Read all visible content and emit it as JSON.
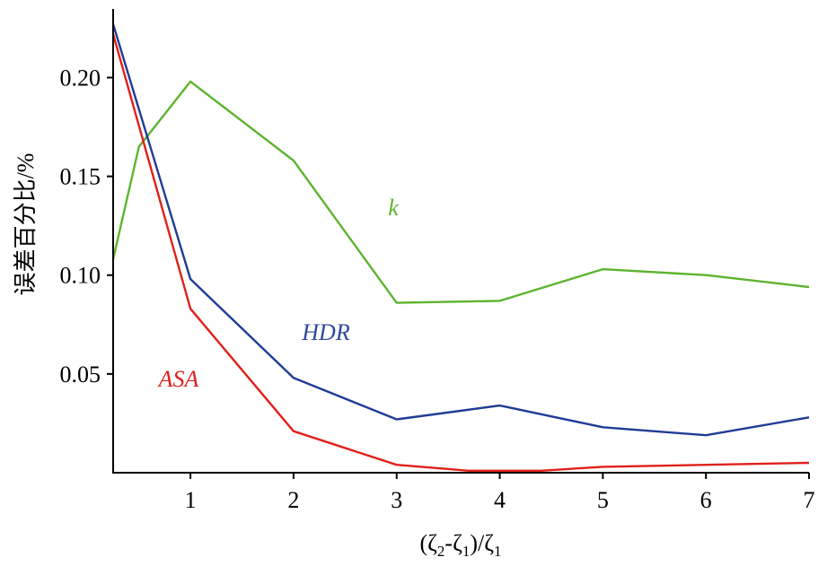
{
  "chart_data": {
    "type": "line",
    "xlabel": "(ζ2-ζ1)/ζ1",
    "ylabel": "误差百分比/%",
    "xlim": [
      0.25,
      7
    ],
    "ylim": [
      0,
      0.232
    ],
    "xticks": [
      1,
      2,
      3,
      4,
      5,
      6,
      7
    ],
    "yticks": [
      0.05,
      0.1,
      0.15,
      0.2
    ],
    "ytick_labels": [
      "0.05",
      "0.10",
      "0.15",
      "0.20"
    ],
    "grid": false,
    "series": [
      {
        "name": "k",
        "color": "#5db42e",
        "x": [
          0.25,
          0.5,
          1,
          2,
          3,
          4,
          5,
          6,
          7
        ],
        "y": [
          0.108,
          0.165,
          0.198,
          0.158,
          0.086,
          0.087,
          0.103,
          0.1,
          0.094
        ]
      },
      {
        "name": "HDR",
        "color": "#1f3c96",
        "x": [
          0.25,
          1,
          2,
          3,
          4,
          5,
          6,
          7
        ],
        "y": [
          0.227,
          0.098,
          0.048,
          0.027,
          0.034,
          0.023,
          0.019,
          0.028
        ]
      },
      {
        "name": "ASA",
        "color": "#e0201b",
        "x": [
          0.25,
          1,
          2,
          3,
          3.7,
          4.4,
          5,
          6,
          7
        ],
        "y": [
          0.222,
          0.083,
          0.021,
          0.004,
          0.001,
          0.001,
          0.003,
          0.004,
          0.005
        ]
      }
    ]
  }
}
